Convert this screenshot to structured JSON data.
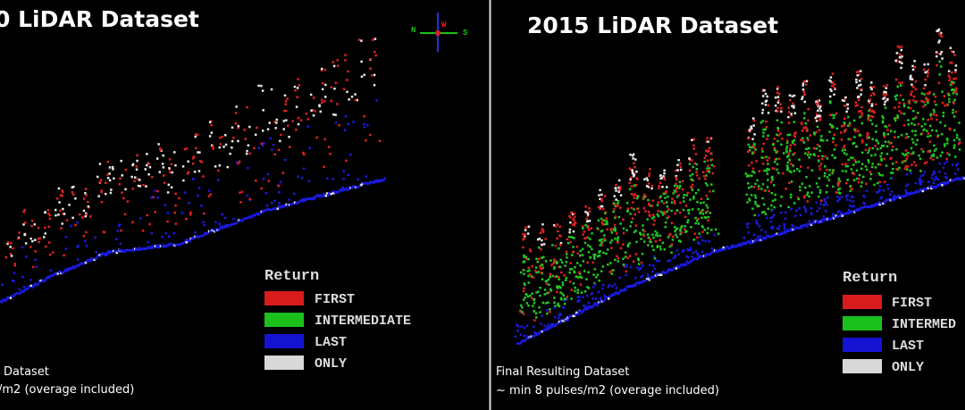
{
  "left_panel": {
    "title": "0 LiDAR Dataset",
    "compass": {
      "left": "N",
      "center": "W",
      "right": "S"
    },
    "legend": {
      "title": "Return",
      "items": [
        "FIRST",
        "INTERMEDIATE",
        "LAST",
        "ONLY"
      ]
    },
    "caption": [
      "Dataset",
      "/m2 (overage included)"
    ]
  },
  "right_panel": {
    "title": "2015 LiDAR Dataset",
    "legend": {
      "title": "Return",
      "items": [
        "FIRST",
        "INTERMED",
        "LAST",
        "ONLY"
      ]
    },
    "caption": [
      "Final Resulting Dataset",
      "~ min 8 pulses/m2 (overage included)"
    ]
  }
}
